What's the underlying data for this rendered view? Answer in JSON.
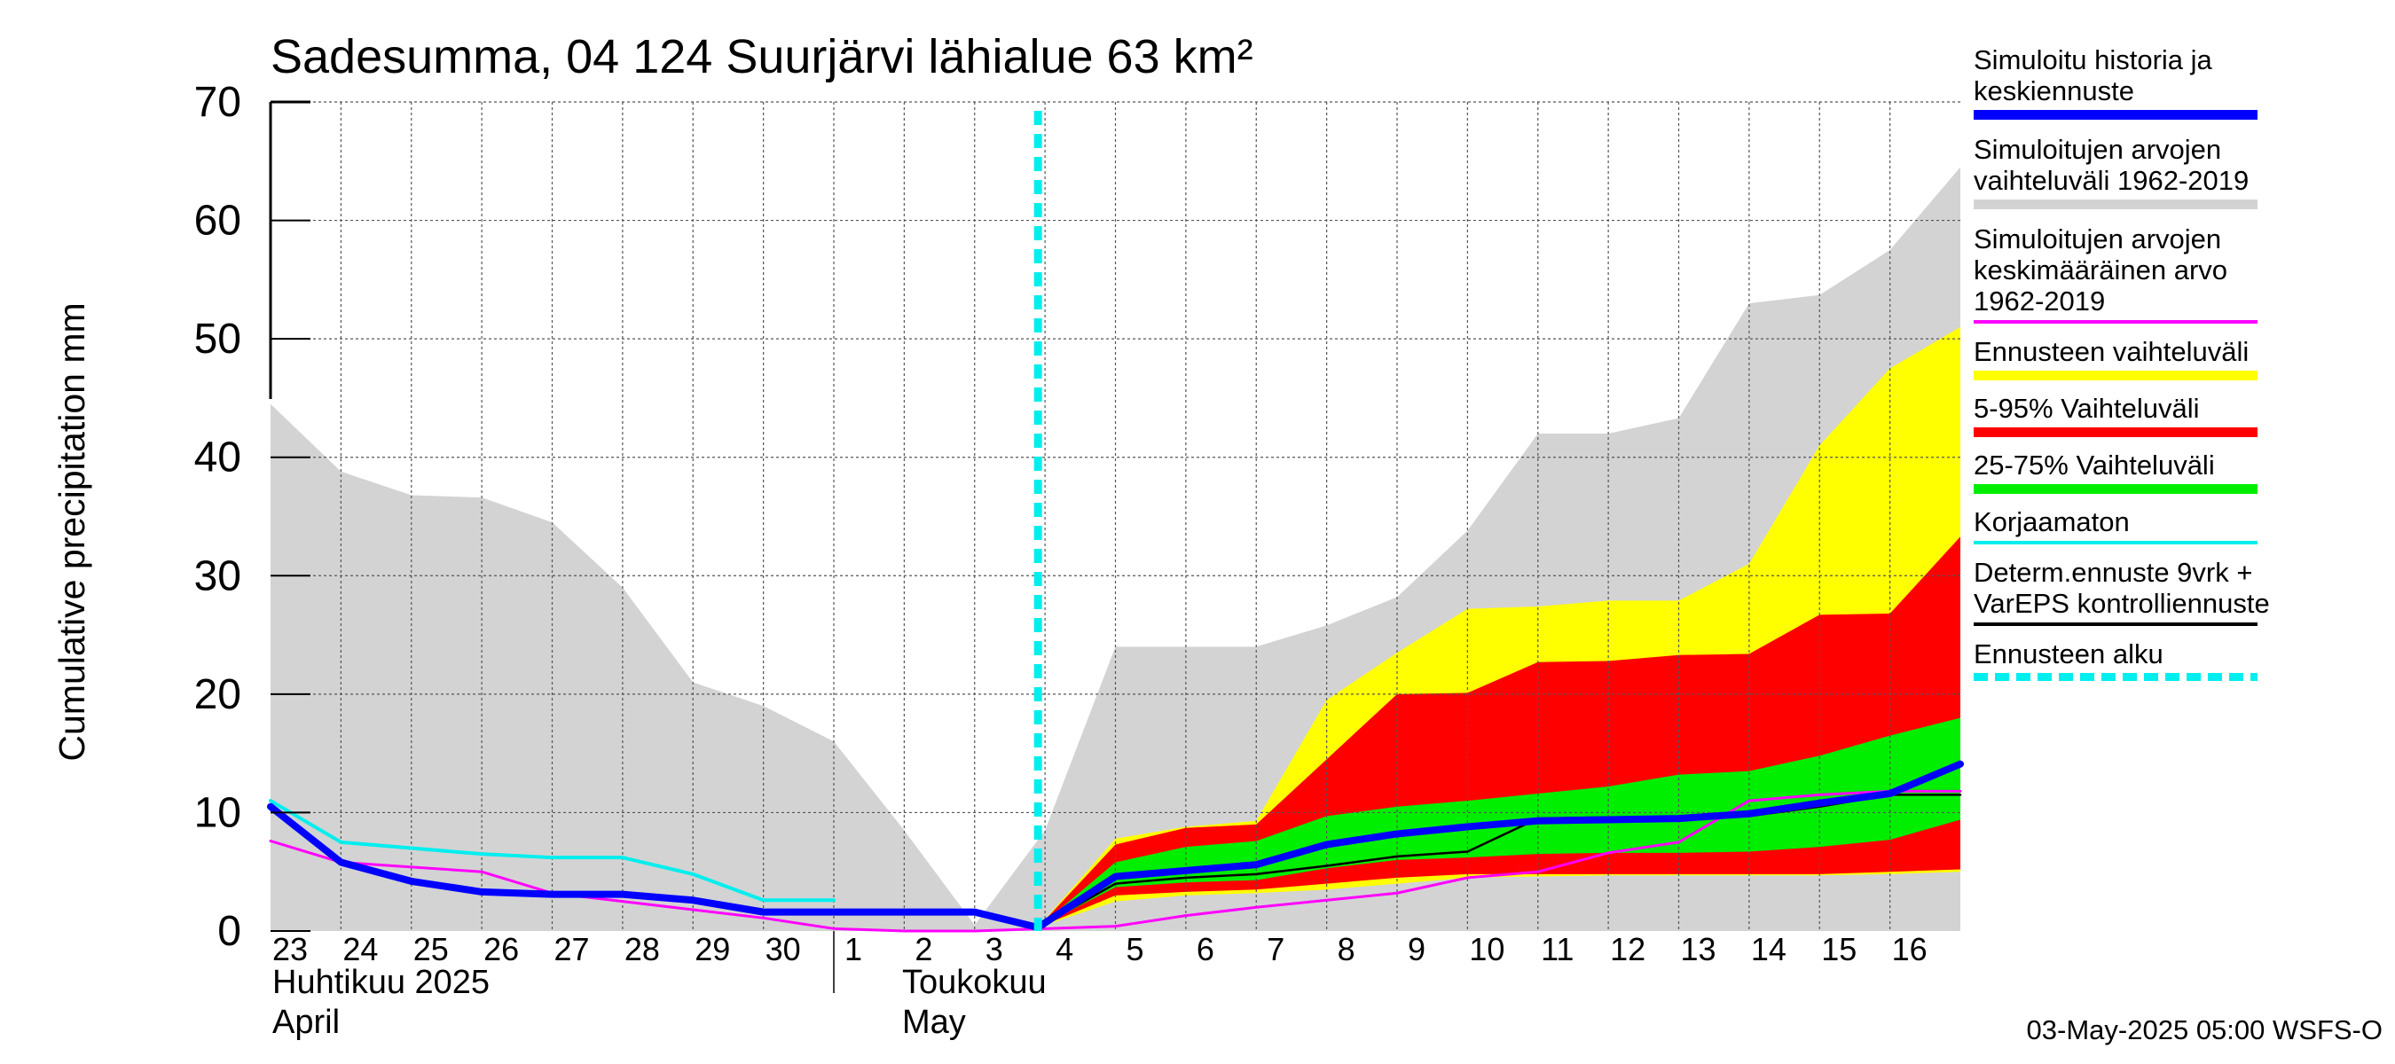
{
  "chart_data": {
    "type": "area",
    "title": "Sadesumma, 04 124 Suurjärvi lähialue 63 km²",
    "ylabel": "Cumulative precipitation   mm",
    "ylim": [
      0,
      70
    ],
    "yticks": [
      0,
      10,
      20,
      30,
      40,
      50,
      60,
      70
    ],
    "grid": true,
    "legend_position": "right",
    "x_day_labels": [
      "23",
      "24",
      "25",
      "26",
      "27",
      "28",
      "29",
      "30",
      "1",
      "2",
      "3",
      "4",
      "5",
      "6",
      "7",
      "8",
      "9",
      "10",
      "11",
      "12",
      "13",
      "14",
      "15",
      "16"
    ],
    "month_labels": [
      {
        "line1": "Huhtikuu  2025",
        "line2": "April"
      },
      {
        "line1": "Toukokuu",
        "line2": "May"
      }
    ],
    "forecast_start_day": 10.9,
    "series": [
      {
        "name": "Simuloitujen arvojen vaihteluväli 1962-2019",
        "color": "#d3d3d3",
        "kind": "band",
        "x": [
          0,
          1,
          2,
          3,
          4,
          5,
          6,
          7,
          8,
          9,
          10,
          11,
          12,
          13,
          14,
          15,
          16,
          17,
          18,
          19,
          20,
          21,
          22,
          23,
          24
        ],
        "upper": [
          44.5,
          38.8,
          36.8,
          36.6,
          34.5,
          29,
          21,
          19,
          16,
          8.5,
          0.5,
          8.5,
          24,
          24,
          24,
          25.8,
          28.2,
          33.8,
          42,
          42,
          43.3,
          53,
          53.7,
          57.5,
          64.5
        ],
        "lower": [
          0,
          0,
          0,
          0,
          0,
          0,
          0,
          0,
          0,
          0,
          0,
          0,
          0,
          0,
          0,
          0,
          0,
          0,
          0,
          0,
          0,
          0,
          0,
          0,
          0
        ]
      },
      {
        "name": "Ennusteen vaihteluväli",
        "color": "#ffff00",
        "kind": "band",
        "x": [
          10.9,
          12,
          13,
          14,
          15,
          16,
          17,
          18,
          19,
          20,
          21,
          22,
          23,
          24
        ],
        "upper": [
          0.3,
          7.8,
          8.8,
          9.3,
          19.5,
          23.5,
          27.2,
          27.4,
          27.9,
          27.9,
          31,
          41,
          47.5,
          51
        ],
        "lower": [
          0.3,
          2.5,
          3.0,
          3.2,
          3.5,
          4.0,
          4.5,
          4.6,
          4.7,
          4.7,
          4.7,
          4.7,
          4.8,
          5.0
        ]
      },
      {
        "name": "5-95% Vaihteluväli",
        "color": "#ff0000",
        "kind": "band",
        "x": [
          10.9,
          12,
          13,
          14,
          15,
          16,
          17,
          18,
          19,
          20,
          21,
          22,
          23,
          24
        ],
        "upper": [
          0.3,
          7.3,
          8.7,
          9.0,
          14.5,
          20,
          20.1,
          22.7,
          22.8,
          23.3,
          23.4,
          26.7,
          26.8,
          33.3
        ],
        "lower": [
          0.3,
          3.0,
          3.3,
          3.5,
          4.0,
          4.5,
          4.8,
          4.8,
          4.8,
          4.8,
          4.8,
          4.8,
          5.0,
          5.2
        ]
      },
      {
        "name": "25-75% Vaihteluväli",
        "color": "#00ee00",
        "kind": "band",
        "x": [
          10.9,
          12,
          13,
          14,
          15,
          16,
          17,
          18,
          19,
          20,
          21,
          22,
          23,
          24
        ],
        "upper": [
          0.3,
          5.8,
          7.1,
          7.6,
          9.7,
          10.5,
          11.0,
          11.6,
          12.2,
          13.2,
          13.5,
          14.8,
          16.5,
          18.0
        ],
        "lower": [
          0.3,
          3.7,
          4.1,
          4.3,
          5.3,
          6.0,
          6.2,
          6.5,
          6.6,
          6.6,
          6.7,
          7.1,
          7.7,
          9.4
        ]
      },
      {
        "name": "Simuloitujen arvojen keskimääräinen arvo 1962-2019",
        "color": "#ff00ff",
        "kind": "line",
        "width": 3,
        "x": [
          0,
          1,
          2,
          3,
          4,
          5,
          6,
          7,
          8,
          9,
          10,
          11,
          12,
          13,
          14,
          15,
          16,
          17,
          18,
          19,
          20,
          21,
          22,
          23,
          24
        ],
        "y": [
          7.6,
          5.8,
          5.4,
          5.0,
          3.2,
          2.5,
          1.8,
          1.1,
          0.2,
          0.0,
          0.0,
          0.2,
          0.4,
          1.3,
          2.0,
          2.6,
          3.2,
          4.5,
          5.0,
          6.6,
          7.5,
          11.0,
          11.5,
          11.8,
          11.8
        ]
      },
      {
        "name": "Korjaamaton",
        "color": "#00eeee",
        "kind": "line",
        "width": 4,
        "x": [
          0,
          1,
          2,
          3,
          4,
          5,
          6,
          7,
          8
        ],
        "y": [
          11.0,
          7.5,
          7.0,
          6.5,
          6.2,
          6.2,
          4.8,
          2.6,
          2.6
        ]
      },
      {
        "name": "Determ.ennuste 9vrk + VarEPS kontrolliennuste",
        "color": "#000000",
        "kind": "line",
        "width": 2.5,
        "x": [
          10.9,
          12,
          13,
          14,
          15,
          16,
          17,
          18,
          19,
          20,
          21,
          22,
          23,
          24
        ],
        "y": [
          0.3,
          4.0,
          4.5,
          4.8,
          5.5,
          6.3,
          6.7,
          9.5,
          9.6,
          9.6,
          9.7,
          10.5,
          11.5,
          11.5
        ]
      },
      {
        "name": "Simuloitu historia ja keskiennuste",
        "color": "#0000ff",
        "kind": "line",
        "width": 8,
        "x": [
          0,
          1,
          2,
          3,
          4,
          5,
          6,
          7,
          8,
          9,
          10,
          10.9,
          12,
          13,
          14,
          15,
          16,
          17,
          18,
          19,
          20,
          21,
          22,
          23,
          24
        ],
        "y": [
          10.5,
          5.8,
          4.2,
          3.3,
          3.1,
          3.1,
          2.6,
          1.6,
          1.6,
          1.6,
          1.6,
          0.3,
          4.6,
          5.1,
          5.6,
          7.3,
          8.2,
          8.8,
          9.3,
          9.4,
          9.5,
          9.9,
          10.8,
          11.6,
          14.1
        ]
      },
      {
        "name": "Ennusteen alku",
        "color": "#00eeee",
        "kind": "vline",
        "x": 10.9
      }
    ]
  },
  "legend": [
    {
      "label": "Simuloitu historia ja\nkeskiennuste",
      "color": "#0000ff",
      "style": "solid"
    },
    {
      "label": "Simuloitujen arvojen\nvaihteluväli 1962-2019",
      "color": "#d3d3d3",
      "style": "solid"
    },
    {
      "label": "Simuloitujen arvojen\nkeskimääräinen arvo\n   1962-2019",
      "color": "#ff00ff",
      "style": "thin"
    },
    {
      "label": "Ennusteen vaihteluväli",
      "color": "#ffff00",
      "style": "solid"
    },
    {
      "label": "5-95% Vaihteluväli",
      "color": "#ff0000",
      "style": "solid"
    },
    {
      "label": "25-75% Vaihteluväli",
      "color": "#00ee00",
      "style": "solid"
    },
    {
      "label": "Korjaamaton",
      "color": "#00eeee",
      "style": "thin"
    },
    {
      "label": "Determ.ennuste 9vrk +\nVarEPS kontrolliennuste",
      "color": "#000000",
      "style": "thin"
    },
    {
      "label": "Ennusteen alku",
      "color": "#00eeee",
      "style": "dashed"
    }
  ],
  "footer": "03-May-2025 05:00 WSFS-O"
}
